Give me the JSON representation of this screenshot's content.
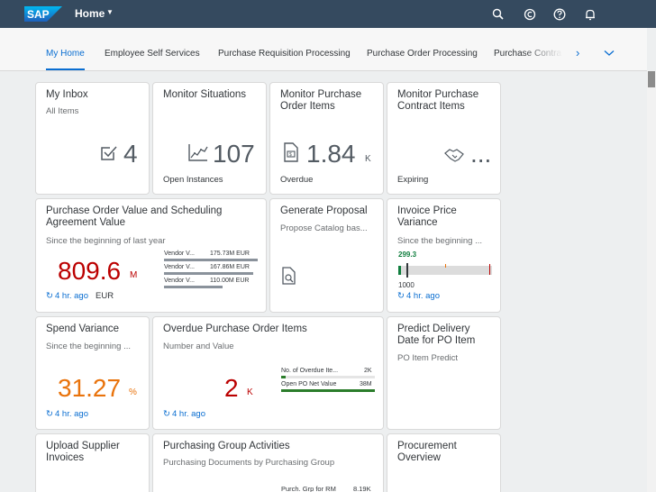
{
  "header": {
    "logo_text": "SAP",
    "title": "Home",
    "brand_color": "#0a6ed1",
    "icons": [
      "search-icon",
      "copilot-icon",
      "help-icon",
      "notifications-icon"
    ]
  },
  "tabs": [
    {
      "label": "My Home",
      "active": true
    },
    {
      "label": "Employee Self Services"
    },
    {
      "label": "Purchase Requisition Processing"
    },
    {
      "label": "Purchase Order Processing"
    },
    {
      "label": "Purchase Contra"
    }
  ],
  "tiles": {
    "inbox": {
      "title": "My Inbox",
      "subtitle": "All Items",
      "value": "4"
    },
    "situations": {
      "title": "Monitor Situations",
      "value": "107",
      "footer": "Open Instances"
    },
    "po_items": {
      "title": "Monitor Purchase Order Items",
      "value": "1.84",
      "scale": "K",
      "footer": "Overdue"
    },
    "contract_items": {
      "title": "Monitor Purchase Contract Items",
      "value": "...",
      "footer": "Expiring"
    },
    "po_value": {
      "title": "Purchase Order Value and Scheduling Agreement Value",
      "subtitle": "Since the beginning of last year",
      "value": "809.6",
      "scale": "M",
      "refresh": "4 hr. ago",
      "footer": "EUR",
      "comparison": [
        {
          "label": "Vendor V...",
          "value": "175.73M EUR",
          "fraction": 1.0
        },
        {
          "label": "Vendor V...",
          "value": "167.86M EUR",
          "fraction": 0.955
        },
        {
          "label": "Vendor V...",
          "value": "110.00M EUR",
          "fraction": 0.626
        }
      ],
      "value_color": "#bb0000"
    },
    "proposal": {
      "title": "Generate Proposal",
      "subtitle": "Propose Catalog bas..."
    },
    "invoice": {
      "title": "Invoice Price Variance",
      "subtitle": "Since the beginning ...",
      "actual": "299.3",
      "target": "1000",
      "refresh": "4 hr. ago",
      "actual_color": "#107e3e"
    },
    "spend": {
      "title": "Spend Variance",
      "subtitle": "Since the beginning ...",
      "value": "31.27",
      "scale": "%",
      "refresh": "4 hr. ago",
      "value_color": "#e9730c"
    },
    "overdue_po": {
      "title": "Overdue Purchase Order Items",
      "subtitle": "Number and Value",
      "value": "2",
      "scale": "K",
      "refresh": "4 hr. ago",
      "value_color": "#bb0000",
      "comparison": [
        {
          "label": "No. of Overdue Ite...",
          "value": "2K",
          "fraction": 0.05
        },
        {
          "label": "Open PO Net Value",
          "value": "38M",
          "fraction": 1.0
        }
      ],
      "bar_color": "#2b7d2b"
    },
    "predict": {
      "title": "Predict Delivery Date for PO Item",
      "subtitle": "PO Item Predict"
    },
    "upload": {
      "title": "Upload Supplier Invoices"
    },
    "pgroup": {
      "title": "Purchasing Group Activities",
      "subtitle": "Purchasing Documents by Purchasing Group",
      "row_label": "Purch. Grp for RM",
      "row_value": "8.19K"
    },
    "procurement": {
      "title": "Procurement Overview"
    }
  }
}
